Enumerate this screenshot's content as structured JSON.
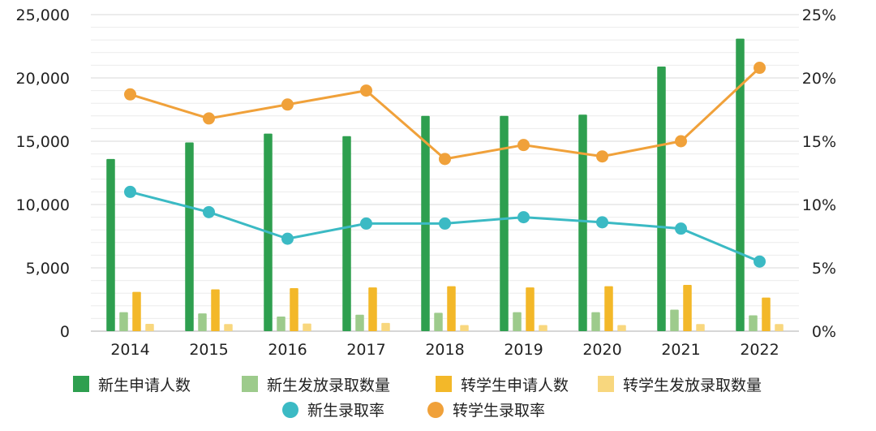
{
  "chart_data": {
    "type": "bar",
    "categories": [
      "2014",
      "2015",
      "2016",
      "2017",
      "2018",
      "2019",
      "2020",
      "2021",
      "2022"
    ],
    "y_left": {
      "lim": [
        0,
        25000
      ],
      "ticks": [
        "0",
        "5,000",
        "10,000",
        "15,000",
        "20,000",
        "25,000"
      ],
      "tick_values": [
        0,
        5000,
        10000,
        15000,
        20000,
        25000
      ]
    },
    "y_right": {
      "lim": [
        0,
        25
      ],
      "ticks": [
        "0%",
        "5%",
        "10%",
        "15%",
        "20%",
        "25%"
      ],
      "tick_values": [
        0,
        5,
        10,
        15,
        20,
        25
      ]
    },
    "grid": true,
    "legend_position": "bottom",
    "series": [
      {
        "name": "新生申请人数",
        "type": "bar",
        "axis": "left",
        "color": "#2e9f4f",
        "values": [
          13600,
          14900,
          15600,
          15400,
          17000,
          17000,
          17100,
          20900,
          23100
        ]
      },
      {
        "name": "新生发放录取数量",
        "type": "bar",
        "axis": "left",
        "color": "#9dcb8c",
        "values": [
          1500,
          1400,
          1150,
          1300,
          1450,
          1500,
          1500,
          1700,
          1250
        ]
      },
      {
        "name": "转学生申请人数",
        "type": "bar",
        "axis": "left",
        "color": "#f3b829",
        "values": [
          3100,
          3300,
          3400,
          3450,
          3550,
          3450,
          3550,
          3650,
          2650
        ]
      },
      {
        "name": "转学生发放录取数量",
        "type": "bar",
        "axis": "left",
        "color": "#f8d77e",
        "values": [
          580,
          560,
          600,
          650,
          480,
          480,
          480,
          560,
          560
        ]
      },
      {
        "name": "新生录取率",
        "type": "line",
        "axis": "right",
        "color": "#3bbac4",
        "values": [
          11.0,
          9.4,
          7.3,
          8.5,
          8.5,
          9.0,
          8.6,
          8.1,
          5.5
        ]
      },
      {
        "name": "转学生录取率",
        "type": "line",
        "axis": "right",
        "color": "#f0a13a",
        "values": [
          18.7,
          16.8,
          17.9,
          19.0,
          13.6,
          14.7,
          13.8,
          15.0,
          20.8
        ]
      }
    ]
  }
}
